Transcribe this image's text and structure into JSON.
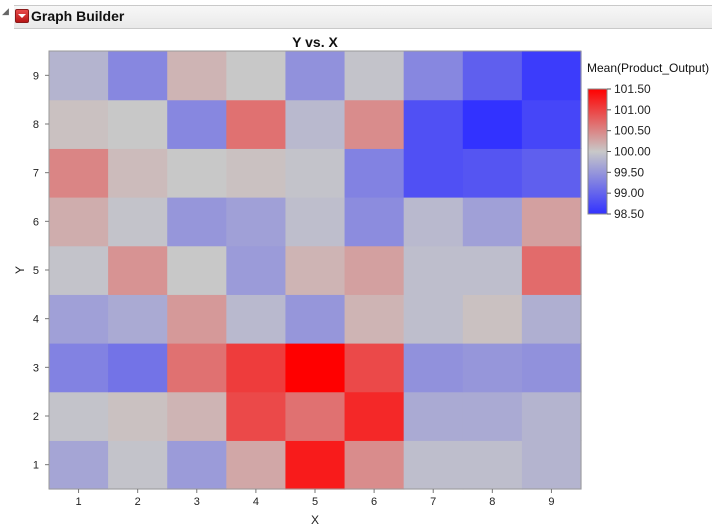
{
  "window": {
    "title": "Graph Builder"
  },
  "icons": {
    "disclosure": "disclosure-triangle-icon",
    "menu": "red-triangle-menu-icon"
  },
  "chart_data": {
    "type": "heatmap",
    "title": "Y vs. X",
    "xlabel": "X",
    "ylabel": "Y",
    "x_categories": [
      "1",
      "2",
      "3",
      "4",
      "5",
      "6",
      "7",
      "8",
      "9"
    ],
    "y_categories": [
      "1",
      "2",
      "3",
      "4",
      "5",
      "6",
      "7",
      "8",
      "9"
    ],
    "value_label": "Mean(Product_Output)",
    "color_scale": {
      "min": 98.5,
      "mid": 100.0,
      "max": 101.5,
      "min_color": "#3232ff",
      "mid_color": "#c8c8c8",
      "max_color": "#ff0000",
      "ticks": [
        "101.50",
        "101.00",
        "100.50",
        "100.00",
        "99.50",
        "99.00",
        "98.50"
      ]
    },
    "values": [
      [
        99.65,
        99.95,
        99.55,
        100.25,
        101.3,
        100.45,
        99.9,
        99.9,
        99.8
      ],
      [
        99.95,
        100.05,
        100.15,
        100.95,
        100.65,
        101.2,
        99.7,
        99.7,
        99.8
      ],
      [
        99.3,
        99.15,
        100.65,
        101.05,
        101.5,
        100.95,
        99.45,
        99.5,
        99.45
      ],
      [
        99.6,
        99.7,
        100.35,
        99.85,
        99.5,
        100.15,
        99.9,
        100.05,
        99.75
      ],
      [
        99.95,
        100.4,
        100.0,
        99.55,
        100.15,
        100.3,
        99.9,
        99.9,
        100.7
      ],
      [
        100.2,
        99.95,
        99.5,
        99.6,
        99.9,
        99.4,
        99.85,
        99.6,
        100.3
      ],
      [
        100.5,
        100.1,
        100.0,
        100.05,
        99.95,
        99.3,
        98.8,
        98.85,
        98.95
      ],
      [
        100.05,
        100.0,
        99.35,
        100.65,
        99.85,
        100.45,
        98.8,
        98.5,
        98.7
      ],
      [
        99.8,
        99.35,
        100.15,
        100.0,
        99.45,
        99.95,
        99.35,
        98.95,
        98.6
      ]
    ]
  }
}
